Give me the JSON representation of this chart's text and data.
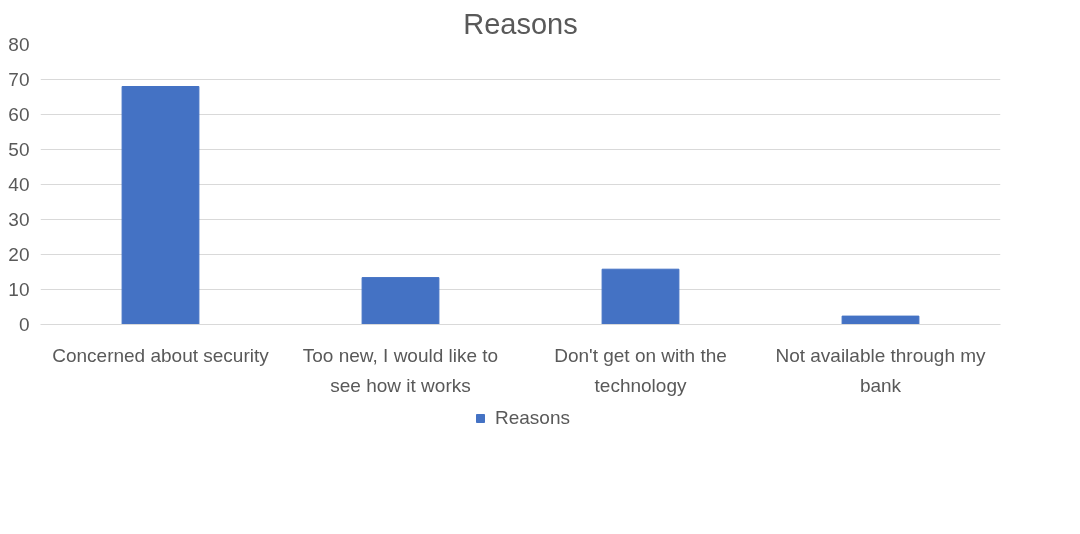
{
  "chart_data": {
    "type": "bar",
    "title": "Reasons",
    "categories": [
      "Concerned about security",
      "Too new, I would like to see how it works",
      "Don't get on with the technology",
      "Not available through my bank"
    ],
    "series": [
      {
        "name": "Reasons",
        "color": "#4472c4",
        "values": [
          68,
          13.4,
          15.8,
          2.4
        ]
      }
    ],
    "ylim": [
      0,
      80
    ],
    "yticks": [
      0,
      10,
      20,
      30,
      40,
      50,
      60,
      70,
      80
    ],
    "grid": "y",
    "legend": "bottom"
  }
}
